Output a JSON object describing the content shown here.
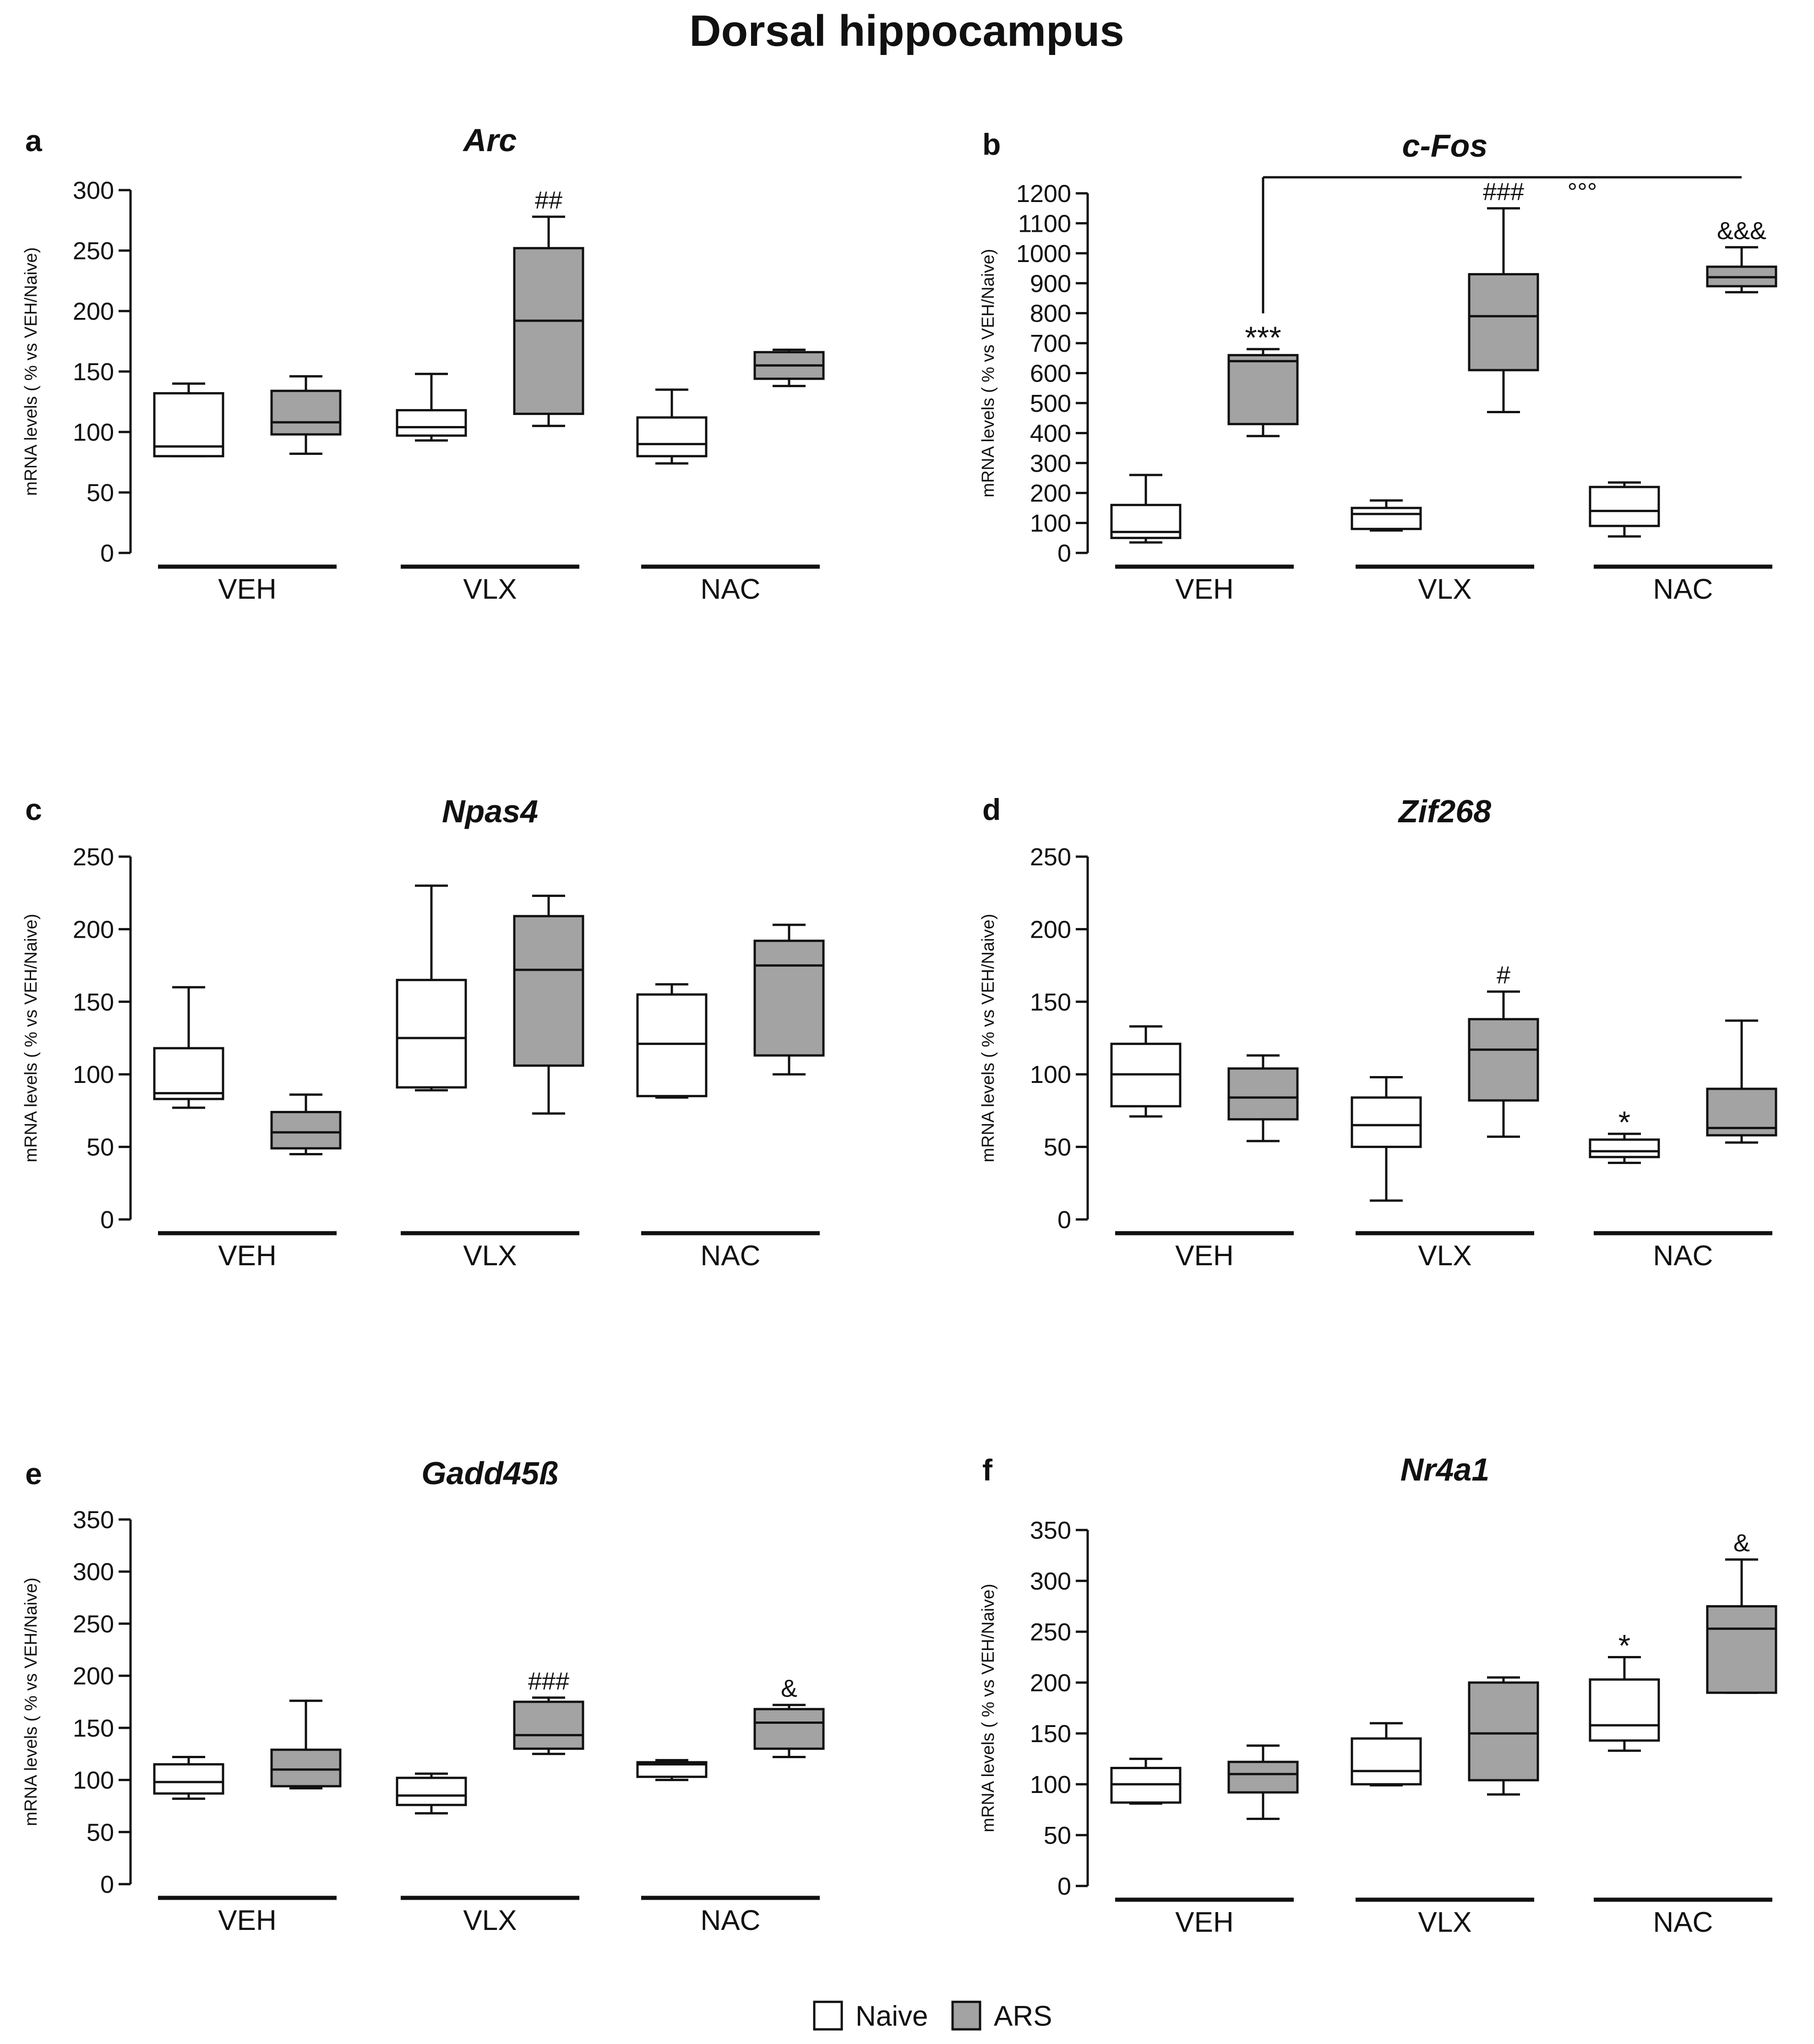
{
  "figure": {
    "title": "Dorsal hippocampus",
    "y_label": "mRNA levels ( % vs VEH/Naive)",
    "colors": {
      "naive": "#ffffff",
      "ars": "#a3a3a3",
      "line": "#111111"
    },
    "legend": {
      "placement": "bottom-center",
      "items": [
        {
          "name": "Naive",
          "color": "#ffffff"
        },
        {
          "name": "ARS",
          "color": "#a3a3a3"
        }
      ]
    }
  },
  "chart_data": [
    {
      "letter": "a",
      "type": "boxplot",
      "title": "Arc",
      "ylabel": "mRNA levels ( % vs VEH/Naive)",
      "ylim": [
        0,
        300
      ],
      "yticks": [
        0,
        50,
        100,
        150,
        200,
        250,
        300
      ],
      "groups": [
        "VEH",
        "VLX",
        "NAC"
      ],
      "series": [
        {
          "name": "Naive",
          "boxes": [
            {
              "group": "VEH",
              "min": 80,
              "q1": 80,
              "median": 88,
              "q3": 132,
              "max": 140
            },
            {
              "group": "VLX",
              "min": 93,
              "q1": 97,
              "median": 104,
              "q3": 118,
              "max": 148
            },
            {
              "group": "NAC",
              "min": 74,
              "q1": 80,
              "median": 90,
              "q3": 112,
              "max": 135
            }
          ]
        },
        {
          "name": "ARS",
          "boxes": [
            {
              "group": "VEH",
              "min": 82,
              "q1": 98,
              "median": 108,
              "q3": 134,
              "max": 146
            },
            {
              "group": "VLX",
              "min": 105,
              "q1": 115,
              "median": 192,
              "q3": 252,
              "max": 278,
              "annotation": "##"
            },
            {
              "group": "NAC",
              "min": 138,
              "q1": 144,
              "median": 155,
              "q3": 166,
              "max": 168
            }
          ]
        }
      ]
    },
    {
      "letter": "b",
      "type": "boxplot",
      "title": "c-Fos",
      "ylabel": "mRNA levels ( % vs VEH/Naive)",
      "ylim": [
        0,
        1200
      ],
      "yticks": [
        0,
        100,
        200,
        300,
        400,
        500,
        600,
        700,
        800,
        900,
        1000,
        1100,
        1200
      ],
      "groups": [
        "VEH",
        "VLX",
        "NAC"
      ],
      "bracket": {
        "label": "°°°",
        "from": "VEH ARS",
        "to": "NAC ARS"
      },
      "series": [
        {
          "name": "Naive",
          "boxes": [
            {
              "group": "VEH",
              "min": 35,
              "q1": 50,
              "median": 70,
              "q3": 160,
              "max": 260
            },
            {
              "group": "VLX",
              "min": 75,
              "q1": 80,
              "median": 130,
              "q3": 150,
              "max": 175
            },
            {
              "group": "NAC",
              "min": 55,
              "q1": 90,
              "median": 140,
              "q3": 220,
              "max": 235
            }
          ]
        },
        {
          "name": "ARS",
          "boxes": [
            {
              "group": "VEH",
              "min": 390,
              "q1": 430,
              "median": 640,
              "q3": 660,
              "max": 680,
              "annotation": "***"
            },
            {
              "group": "VLX",
              "min": 470,
              "q1": 610,
              "median": 790,
              "q3": 930,
              "max": 1150,
              "annotation": "###"
            },
            {
              "group": "NAC",
              "min": 870,
              "q1": 890,
              "median": 920,
              "q3": 955,
              "max": 1020,
              "annotation": "&&&"
            }
          ]
        }
      ]
    },
    {
      "letter": "c",
      "type": "boxplot",
      "title": "Npas4",
      "ylabel": "mRNA levels ( % vs VEH/Naive)",
      "ylim": [
        0,
        250
      ],
      "yticks": [
        0,
        50,
        100,
        150,
        200,
        250
      ],
      "groups": [
        "VEH",
        "VLX",
        "NAC"
      ],
      "series": [
        {
          "name": "Naive",
          "boxes": [
            {
              "group": "VEH",
              "min": 77,
              "q1": 83,
              "median": 87,
              "q3": 118,
              "max": 160
            },
            {
              "group": "VLX",
              "min": 89,
              "q1": 91,
              "median": 125,
              "q3": 165,
              "max": 230
            },
            {
              "group": "NAC",
              "min": 84,
              "q1": 85,
              "median": 121,
              "q3": 155,
              "max": 162
            }
          ]
        },
        {
          "name": "ARS",
          "boxes": [
            {
              "group": "VEH",
              "min": 45,
              "q1": 49,
              "median": 60,
              "q3": 74,
              "max": 86
            },
            {
              "group": "VLX",
              "min": 73,
              "q1": 106,
              "median": 172,
              "q3": 209,
              "max": 223
            },
            {
              "group": "NAC",
              "min": 100,
              "q1": 113,
              "median": 175,
              "q3": 192,
              "max": 203
            }
          ]
        }
      ]
    },
    {
      "letter": "d",
      "type": "boxplot",
      "title": "Zif268",
      "ylabel": "mRNA levels ( % vs VEH/Naive)",
      "ylim": [
        0,
        250
      ],
      "yticks": [
        0,
        50,
        100,
        150,
        200,
        250
      ],
      "groups": [
        "VEH",
        "VLX",
        "NAC"
      ],
      "series": [
        {
          "name": "Naive",
          "boxes": [
            {
              "group": "VEH",
              "min": 71,
              "q1": 78,
              "median": 100,
              "q3": 121,
              "max": 133
            },
            {
              "group": "VLX",
              "min": 13,
              "q1": 50,
              "median": 65,
              "q3": 84,
              "max": 98
            },
            {
              "group": "NAC",
              "min": 39,
              "q1": 43,
              "median": 47,
              "q3": 55,
              "max": 59,
              "annotation": "*"
            }
          ]
        },
        {
          "name": "ARS",
          "boxes": [
            {
              "group": "VEH",
              "min": 54,
              "q1": 69,
              "median": 84,
              "q3": 104,
              "max": 113
            },
            {
              "group": "VLX",
              "min": 57,
              "q1": 82,
              "median": 117,
              "q3": 138,
              "max": 157,
              "annotation": "#"
            },
            {
              "group": "NAC",
              "min": 53,
              "q1": 58,
              "median": 63,
              "q3": 90,
              "max": 137
            }
          ]
        }
      ]
    },
    {
      "letter": "e",
      "type": "boxplot",
      "title": "Gadd45ß",
      "ylabel": "mRNA levels ( % vs VEH/Naive)",
      "ylim": [
        0,
        350
      ],
      "yticks": [
        0,
        50,
        100,
        150,
        200,
        250,
        300,
        350
      ],
      "groups": [
        "VEH",
        "VLX",
        "NAC"
      ],
      "series": [
        {
          "name": "Naive",
          "boxes": [
            {
              "group": "VEH",
              "min": 82,
              "q1": 87,
              "median": 98,
              "q3": 115,
              "max": 122
            },
            {
              "group": "VLX",
              "min": 68,
              "q1": 76,
              "median": 85,
              "q3": 102,
              "max": 106
            },
            {
              "group": "NAC",
              "min": 100,
              "q1": 103,
              "median": 115,
              "q3": 117,
              "max": 119
            }
          ]
        },
        {
          "name": "ARS",
          "boxes": [
            {
              "group": "VEH",
              "min": 92,
              "q1": 94,
              "median": 110,
              "q3": 129,
              "max": 176
            },
            {
              "group": "VLX",
              "min": 125,
              "q1": 130,
              "median": 143,
              "q3": 175,
              "max": 179,
              "annotation": "###"
            },
            {
              "group": "NAC",
              "min": 122,
              "q1": 130,
              "median": 155,
              "q3": 168,
              "max": 172,
              "annotation": "&"
            }
          ]
        }
      ]
    },
    {
      "letter": "f",
      "type": "boxplot",
      "title": "Nr4a1",
      "ylabel": "mRNA levels ( % vs VEH/Naive)",
      "ylim": [
        0,
        350
      ],
      "yticks": [
        0,
        50,
        100,
        150,
        200,
        250,
        300,
        350
      ],
      "groups": [
        "VEH",
        "VLX",
        "NAC"
      ],
      "series": [
        {
          "name": "Naive",
          "boxes": [
            {
              "group": "VEH",
              "min": 81,
              "q1": 82,
              "median": 100,
              "q3": 116,
              "max": 125
            },
            {
              "group": "VLX",
              "min": 99,
              "q1": 100,
              "median": 113,
              "q3": 145,
              "max": 160
            },
            {
              "group": "NAC",
              "min": 133,
              "q1": 143,
              "median": 158,
              "q3": 203,
              "max": 225,
              "annotation": "*"
            }
          ]
        },
        {
          "name": "ARS",
          "boxes": [
            {
              "group": "VEH",
              "min": 66,
              "q1": 92,
              "median": 110,
              "q3": 122,
              "max": 138
            },
            {
              "group": "VLX",
              "min": 90,
              "q1": 104,
              "median": 150,
              "q3": 200,
              "max": 205
            },
            {
              "group": "NAC",
              "min": 190,
              "q1": 190,
              "median": 253,
              "q3": 275,
              "max": 321,
              "annotation": "&"
            }
          ]
        }
      ]
    }
  ]
}
